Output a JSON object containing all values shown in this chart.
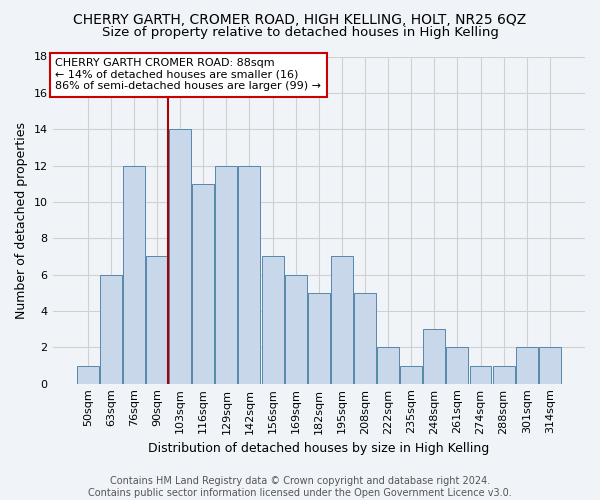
{
  "title": "CHERRY GARTH, CROMER ROAD, HIGH KELLING, HOLT, NR25 6QZ",
  "subtitle": "Size of property relative to detached houses in High Kelling",
  "xlabel": "Distribution of detached houses by size in High Kelling",
  "ylabel": "Number of detached properties",
  "footer_line1": "Contains HM Land Registry data © Crown copyright and database right 2024.",
  "footer_line2": "Contains public sector information licensed under the Open Government Licence v3.0.",
  "bar_labels": [
    "50sqm",
    "63sqm",
    "76sqm",
    "90sqm",
    "103sqm",
    "116sqm",
    "129sqm",
    "142sqm",
    "156sqm",
    "169sqm",
    "182sqm",
    "195sqm",
    "208sqm",
    "222sqm",
    "235sqm",
    "248sqm",
    "261sqm",
    "274sqm",
    "288sqm",
    "301sqm",
    "314sqm"
  ],
  "bar_values": [
    1,
    6,
    12,
    7,
    14,
    11,
    12,
    12,
    7,
    6,
    5,
    7,
    5,
    2,
    1,
    3,
    2,
    1,
    1,
    2,
    2
  ],
  "bar_color": "#c8d8ea",
  "bar_edge_color": "#5588aa",
  "grid_color": "#d0d0d0",
  "vline_color": "#aa0000",
  "vline_x_index": 3,
  "annotation_text": "CHERRY GARTH CROMER ROAD: 88sqm\n← 14% of detached houses are smaller (16)\n86% of semi-detached houses are larger (99) →",
  "annotation_box_edge": "#cc0000",
  "ylim": [
    0,
    18
  ],
  "yticks": [
    0,
    2,
    4,
    6,
    8,
    10,
    12,
    14,
    16,
    18
  ],
  "background_color": "#f0f4f8",
  "plot_bg_color": "#f0f4f8",
  "title_fontsize": 10,
  "subtitle_fontsize": 9.5,
  "axis_label_fontsize": 9,
  "tick_fontsize": 8,
  "annotation_fontsize": 8,
  "footer_fontsize": 7
}
